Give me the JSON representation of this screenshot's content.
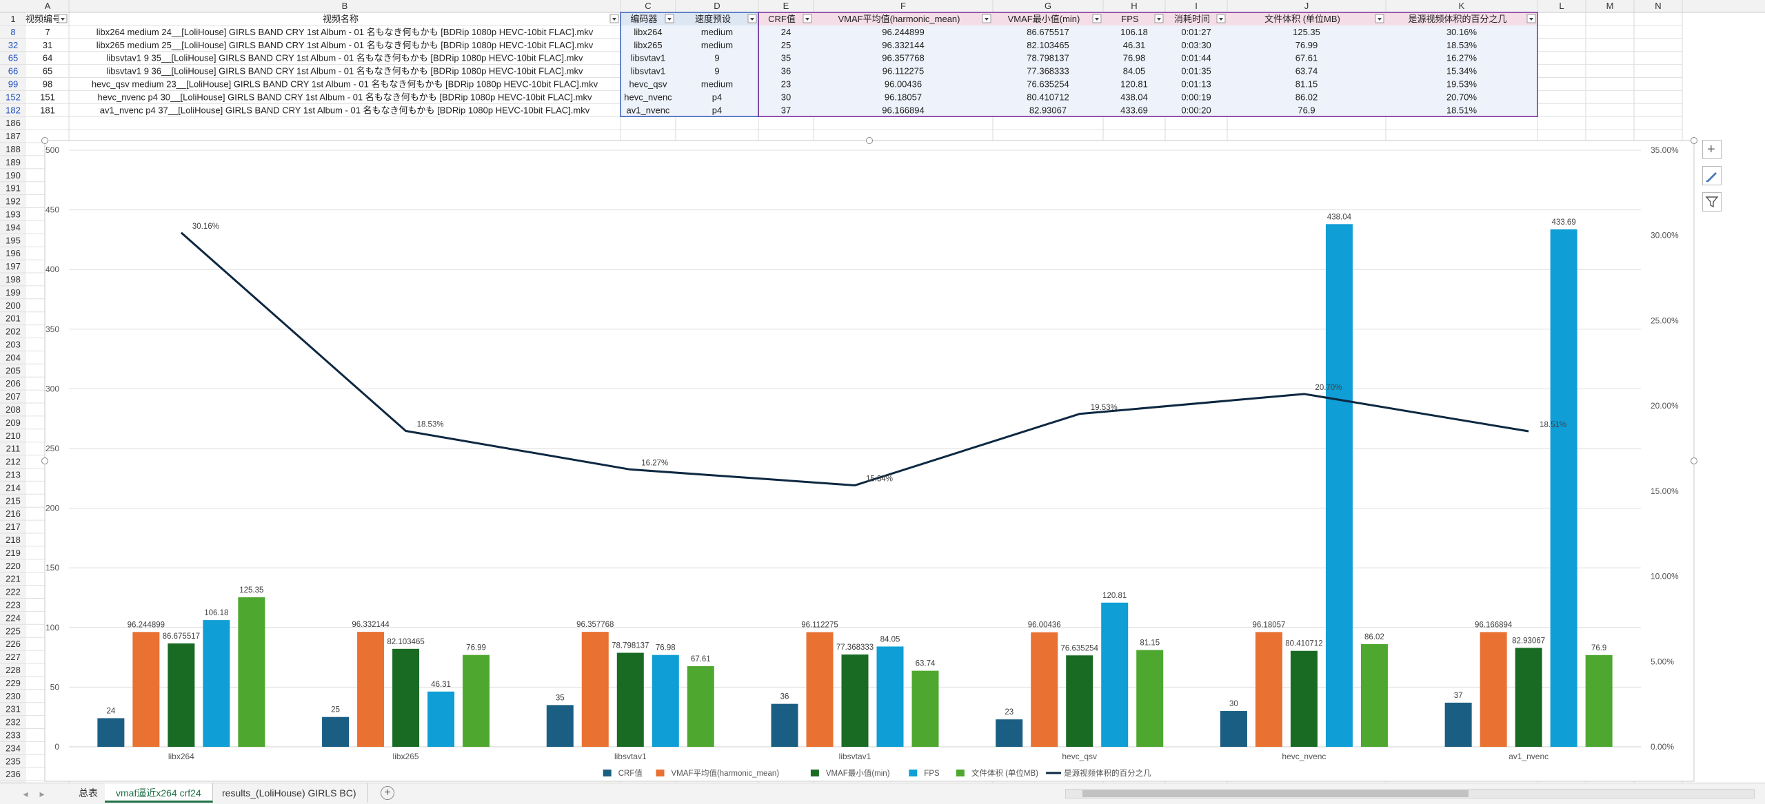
{
  "columns": [
    "A",
    "B",
    "C",
    "D",
    "E",
    "F",
    "G",
    "H",
    "I",
    "J",
    "K",
    "L",
    "M",
    "N"
  ],
  "headers": [
    "视频编号",
    "视频名称",
    "编码器",
    "速度预设",
    "CRF值",
    "VMAF平均值(harmonic_mean)",
    "VMAF最小值(min)",
    "FPS",
    "消耗时间",
    "文件体积 (单位MB)",
    "是源视频体积的百分之几"
  ],
  "rows": [
    {
      "row": "8",
      "cells": [
        "7",
        "libx264 medium 24__[LoliHouse] GIRLS BAND CRY 1st Album - 01 名もなき何もかも [BDRip 1080p HEVC-10bit FLAC].mkv",
        "libx264",
        "medium",
        "24",
        "96.244899",
        "86.675517",
        "106.18",
        "0:01:27",
        "125.35",
        "30.16%"
      ]
    },
    {
      "row": "32",
      "cells": [
        "31",
        "libx265 medium 25__[LoliHouse] GIRLS BAND CRY 1st Album - 01 名もなき何もかも [BDRip 1080p HEVC-10bit FLAC].mkv",
        "libx265",
        "medium",
        "25",
        "96.332144",
        "82.103465",
        "46.31",
        "0:03:30",
        "76.99",
        "18.53%"
      ]
    },
    {
      "row": "65",
      "cells": [
        "64",
        "libsvtav1 9 35__[LoliHouse] GIRLS BAND CRY 1st Album - 01 名もなき何もかも [BDRip 1080p HEVC-10bit FLAC].mkv",
        "libsvtav1",
        "9",
        "35",
        "96.357768",
        "78.798137",
        "76.98",
        "0:01:44",
        "67.61",
        "16.27%"
      ]
    },
    {
      "row": "66",
      "cells": [
        "65",
        "libsvtav1 9 36__[LoliHouse] GIRLS BAND CRY 1st Album - 01 名もなき何もかも [BDRip 1080p HEVC-10bit FLAC].mkv",
        "libsvtav1",
        "9",
        "36",
        "96.112275",
        "77.368333",
        "84.05",
        "0:01:35",
        "63.74",
        "15.34%"
      ]
    },
    {
      "row": "99",
      "cells": [
        "98",
        "hevc_qsv medium 23__[LoliHouse] GIRLS BAND CRY 1st Album - 01 名もなき何もかも [BDRip 1080p HEVC-10bit FLAC].mkv",
        "hevc_qsv",
        "medium",
        "23",
        "96.00436",
        "76.635254",
        "120.81",
        "0:01:13",
        "81.15",
        "19.53%"
      ]
    },
    {
      "row": "152",
      "cells": [
        "151",
        "hevc_nvenc p4 30__[LoliHouse] GIRLS BAND CRY 1st Album - 01 名もなき何もかも [BDRip 1080p HEVC-10bit FLAC].mkv",
        "hevc_nvenc",
        "p4",
        "30",
        "96.18057",
        "80.410712",
        "438.04",
        "0:00:19",
        "86.02",
        "20.70%"
      ]
    },
    {
      "row": "182",
      "cells": [
        "181",
        "av1_nvenc p4 37__[LoliHouse] GIRLS BAND CRY 1st Album - 01 名もなき何もかも [BDRip 1080p HEVC-10bit FLAC].mkv",
        "av1_nvenc",
        "p4",
        "37",
        "96.166894",
        "82.93067",
        "433.69",
        "0:00:20",
        "76.9",
        "18.51%"
      ]
    }
  ],
  "empty_rows": [
    "186",
    "187",
    "188",
    "189",
    "190",
    "191",
    "192",
    "193",
    "194",
    "195",
    "196",
    "197",
    "198",
    "199",
    "200",
    "201",
    "202",
    "203",
    "204",
    "205",
    "206",
    "207",
    "208",
    "209",
    "210",
    "211",
    "212",
    "213",
    "214",
    "215",
    "216",
    "217",
    "218",
    "219",
    "220",
    "221",
    "222",
    "223",
    "224",
    "225",
    "226",
    "227",
    "228",
    "229",
    "230",
    "231",
    "232",
    "233",
    "234",
    "235",
    "236"
  ],
  "chart_data": {
    "type": "bar",
    "categories": [
      "libx264",
      "libx265",
      "libsvtav1",
      "libsvtav1",
      "hevc_qsv",
      "hevc_nvenc",
      "av1_nvenc"
    ],
    "series": [
      {
        "name": "CRF值",
        "color": "#1b5e83",
        "values": [
          24,
          25,
          35,
          36,
          23,
          30,
          37
        ],
        "labels": [
          "24",
          "25",
          "35",
          "36",
          "23",
          "30",
          "37"
        ]
      },
      {
        "name": "VMAF平均值(harmonic_mean)",
        "color": "#e97132",
        "values": [
          96.244899,
          96.332144,
          96.357768,
          96.112275,
          96.00436,
          96.18057,
          96.166894
        ],
        "labels": [
          "96.244899",
          "96.332144",
          "96.357768",
          "96.112275",
          "96.00436",
          "96.18057",
          "96.166894"
        ]
      },
      {
        "name": "VMAF最小值(min)",
        "color": "#196b24",
        "values": [
          86.675517,
          82.103465,
          78.798137,
          77.368333,
          76.635254,
          80.410712,
          82.93067
        ],
        "labels": [
          "86.675517",
          "82.103465",
          "78.798137",
          "77.368333",
          "76.635254",
          "80.410712",
          "82.93067"
        ]
      },
      {
        "name": "FPS",
        "color": "#0f9ed5",
        "values": [
          106.18,
          46.31,
          76.98,
          84.05,
          120.81,
          438.04,
          433.69
        ],
        "labels": [
          "106.18",
          "46.31",
          "76.98",
          "84.05",
          "120.81",
          "438.04",
          "433.69"
        ]
      },
      {
        "name": "文件体积 (单位MB)",
        "color": "#4ea72e",
        "values": [
          125.35,
          76.99,
          67.61,
          63.74,
          81.15,
          86.02,
          76.9
        ],
        "labels": [
          "125.35",
          "76.99",
          "67.61",
          "63.74",
          "81.15",
          "86.02",
          "76.9"
        ]
      }
    ],
    "line_series": {
      "name": "是源视频体积的百分之几",
      "color": "#0e2841",
      "values": [
        30.16,
        18.53,
        16.27,
        15.34,
        19.53,
        20.7,
        18.51
      ],
      "labels": [
        "30.16%",
        "18.53%",
        "16.27%",
        "15.34%",
        "19.53%",
        "20.70%",
        "18.51%"
      ]
    },
    "ylim": [
      0,
      500
    ],
    "yticks": [
      "0",
      "50",
      "100",
      "150",
      "200",
      "250",
      "300",
      "350",
      "400",
      "450",
      "500"
    ],
    "y2lim": [
      0,
      35
    ],
    "y2ticks": [
      "0.00%",
      "5.00%",
      "10.00%",
      "15.00%",
      "20.00%",
      "25.00%",
      "30.00%",
      "35.00%"
    ],
    "grid": true,
    "legend": "bottom"
  },
  "chart_tools": [
    "add-element-icon",
    "brush-style-icon",
    "filter-icon"
  ],
  "sheet_tabs": [
    "总表",
    "vmaf逼近x264 crf24",
    "results_(LoliHouse) GIRLS BC)"
  ],
  "active_tab": 1,
  "add_sheet_label": "+"
}
